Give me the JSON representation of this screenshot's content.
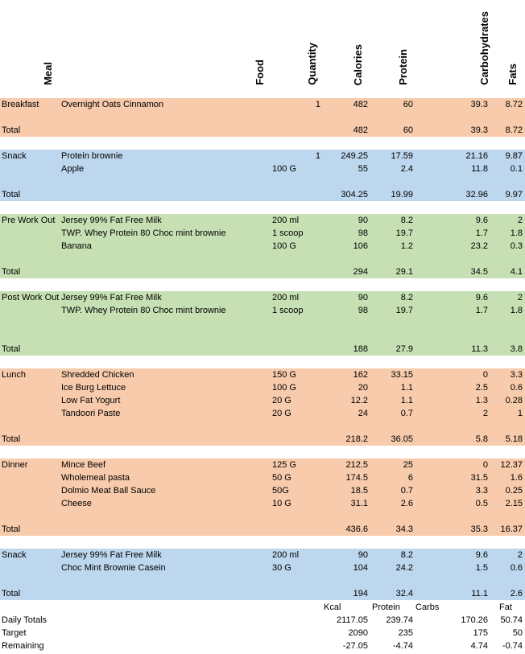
{
  "headers": {
    "meal": "Meal",
    "food": "Food",
    "quantity": "Quantity",
    "calories": "Calories",
    "protein": "Protein",
    "carbohydrates": "Carbohydrates",
    "fats": "Fats"
  },
  "sections": [
    {
      "color": "#f7cbac",
      "rows": [
        {
          "meal": "Breakfast",
          "food": "Overnight Oats Cinnamon",
          "qty": "",
          "q1": "1",
          "cal": "482",
          "pro": "60",
          "carb": "39.3",
          "fat": "8.72"
        }
      ],
      "total": {
        "label": "Total",
        "cal": "482",
        "pro": "60",
        "carb": "39.3",
        "fat": "8.72"
      }
    },
    {
      "color": "#bdd7ee",
      "rows": [
        {
          "meal": "Snack",
          "food": "Protein brownie",
          "qty": "",
          "q1": "1",
          "cal": "249.25",
          "pro": "17.59",
          "carb": "21.16",
          "fat": "9.87"
        },
        {
          "meal": "",
          "food": "Apple",
          "qty": "100 G",
          "q1": "",
          "cal": "55",
          "pro": "2.4",
          "carb": "11.8",
          "fat": "0.1"
        }
      ],
      "total": {
        "label": "Total",
        "cal": "304.25",
        "pro": "19.99",
        "carb": "32.96",
        "fat": "9.97"
      }
    },
    {
      "color": "#c6e0b4",
      "rows": [
        {
          "meal": "Pre Work Out",
          "food": "Jersey 99% Fat Free Milk",
          "qty": "200 ml",
          "q1": "",
          "cal": "90",
          "pro": "8.2",
          "carb": "9.6",
          "fat": "2"
        },
        {
          "meal": "",
          "food": "TWP. Whey Protein 80 Choc mint brownie",
          "qty": "1 scoop",
          "q1": "",
          "cal": "98",
          "pro": "19.7",
          "carb": "1.7",
          "fat": "1.8"
        },
        {
          "meal": "",
          "food": "Banana",
          "qty": "100 G",
          "q1": "",
          "cal": "106",
          "pro": "1.2",
          "carb": "23.2",
          "fat": "0.3"
        }
      ],
      "total": {
        "label": "Total",
        "cal": "294",
        "pro": "29.1",
        "carb": "34.5",
        "fat": "4.1"
      }
    },
    {
      "color": "#c6e0b4",
      "rows": [
        {
          "meal": "Post Work Out",
          "food": "Jersey 99% Fat Free Milk",
          "qty": "200 ml",
          "q1": "",
          "cal": "90",
          "pro": "8.2",
          "carb": "9.6",
          "fat": "2"
        },
        {
          "meal": "",
          "food": "TWP. Whey Protein 80 Choc mint brownie",
          "qty": "1 scoop",
          "q1": "",
          "cal": "98",
          "pro": "19.7",
          "carb": "1.7",
          "fat": "1.8"
        }
      ],
      "total": {
        "label": "Total",
        "cal": "188",
        "pro": "27.9",
        "carb": "11.3",
        "fat": "3.8"
      }
    },
    {
      "color": "#f7cbac",
      "rows": [
        {
          "meal": "Lunch",
          "food": "Shredded Chicken",
          "qty": "150 G",
          "q1": "",
          "cal": "162",
          "pro": "33.15",
          "carb": "0",
          "fat": "3.3"
        },
        {
          "meal": "",
          "food": "Ice Burg Lettuce",
          "qty": "100 G",
          "q1": "",
          "cal": "20",
          "pro": "1.1",
          "carb": "2.5",
          "fat": "0.6"
        },
        {
          "meal": "",
          "food": "Low Fat Yogurt",
          "qty": "20 G",
          "q1": "",
          "cal": "12.2",
          "pro": "1.1",
          "carb": "1.3",
          "fat": "0.28"
        },
        {
          "meal": "",
          "food": "Tandoori Paste",
          "qty": "20 G",
          "q1": "",
          "cal": "24",
          "pro": "0.7",
          "carb": "2",
          "fat": "1"
        }
      ],
      "total": {
        "label": "Total",
        "cal": "218.2",
        "pro": "36.05",
        "carb": "5.8",
        "fat": "5.18"
      }
    },
    {
      "color": "#f7cbac",
      "rows": [
        {
          "meal": "Dinner",
          "food": "Mince Beef",
          "qty": "125 G",
          "q1": "",
          "cal": "212.5",
          "pro": "25",
          "carb": "0",
          "fat": "12.37"
        },
        {
          "meal": "",
          "food": "Wholemeal pasta",
          "qty": "50 G",
          "q1": "",
          "cal": "174.5",
          "pro": "6",
          "carb": "31.5",
          "fat": "1.6"
        },
        {
          "meal": "",
          "food": "Dolmio Meat Ball Sauce",
          "qty": "50G",
          "q1": "",
          "cal": "18.5",
          "pro": "0.7",
          "carb": "3.3",
          "fat": "0.25"
        },
        {
          "meal": "",
          "food": "Cheese",
          "qty": "10 G",
          "q1": "",
          "cal": "31.1",
          "pro": "2.6",
          "carb": "0.5",
          "fat": "2.15"
        }
      ],
      "total": {
        "label": "Total",
        "cal": "436.6",
        "pro": "34.3",
        "carb": "35.3",
        "fat": "16.37"
      }
    },
    {
      "color": "#bdd7ee",
      "rows": [
        {
          "meal": "Snack",
          "food": "Jersey 99% Fat Free Milk",
          "qty": "200 ml",
          "q1": "",
          "cal": "90",
          "pro": "8.2",
          "carb": "9.6",
          "fat": "2"
        },
        {
          "meal": "",
          "food": "Choc Mint Brownie Casein",
          "qty": "30 G",
          "q1": "",
          "cal": "104",
          "pro": "24.2",
          "carb": "1.5",
          "fat": "0.6"
        }
      ],
      "total": {
        "label": "Total",
        "cal": "194",
        "pro": "32.4",
        "carb": "11.1",
        "fat": "2.6"
      }
    }
  ],
  "summary": {
    "labels": {
      "kcal": "Kcal",
      "protein": "Protein",
      "carbs": "Carbs",
      "fat": "Fat"
    },
    "rows": [
      {
        "label": "Daily Totals",
        "cal": "2117.05",
        "pro": "239.74",
        "carb": "170.26",
        "fat": "50.74"
      },
      {
        "label": "Target",
        "cal": "2090",
        "pro": "235",
        "carb": "175",
        "fat": "50"
      },
      {
        "label": "Remaining",
        "cal": "-27.05",
        "pro": "-4.74",
        "carb": "4.74",
        "fat": "-0.74"
      }
    ]
  }
}
